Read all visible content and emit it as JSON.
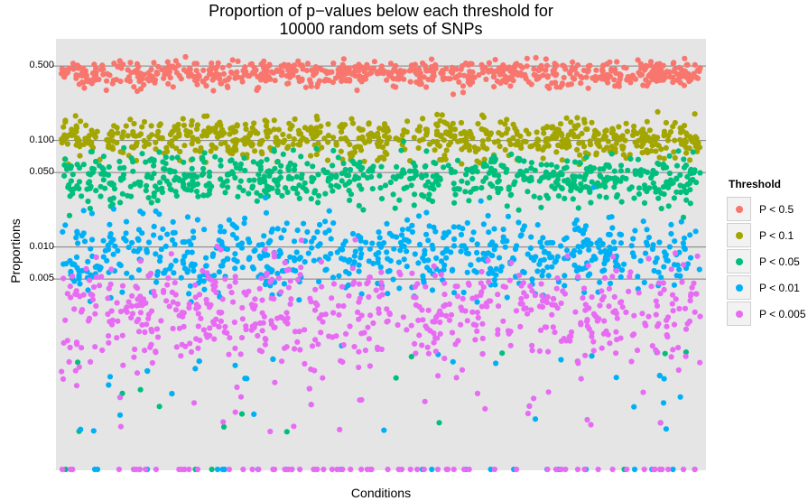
{
  "chart_data": {
    "type": "scatter",
    "title_lines": [
      "Proportion of p−values below each threshold for",
      "10000 random sets of SNPs"
    ],
    "xlabel": "Conditions",
    "ylabel": "Proportions",
    "y_scale": "log",
    "y_ticks": [
      0.005,
      0.01,
      0.05,
      0.1,
      0.5
    ],
    "y_tick_labels": [
      "0.005",
      "0.010",
      "0.050",
      "0.100",
      "0.500"
    ],
    "ylim": [
      8e-05,
      0.9
    ],
    "grid": true,
    "legend": {
      "title": "Threshold",
      "position": "right"
    },
    "n_points_per_series": 720,
    "series": [
      {
        "name": "P < 0.5",
        "color": "#F8766D",
        "typical_range": [
          0.28,
          0.65
        ]
      },
      {
        "name": "P < 0.1",
        "color": "#A3A500",
        "typical_range": [
          0.055,
          0.2
        ]
      },
      {
        "name": "P < 0.05",
        "color": "#00BF7D",
        "typical_range": [
          0.02,
          0.1
        ]
      },
      {
        "name": "P < 0.01",
        "color": "#00B0F6",
        "typical_range": [
          0.0025,
          0.03
        ]
      },
      {
        "name": "P < 0.005",
        "color": "#E76BF3",
        "typical_range": [
          0.0005,
          0.013
        ]
      }
    ]
  }
}
